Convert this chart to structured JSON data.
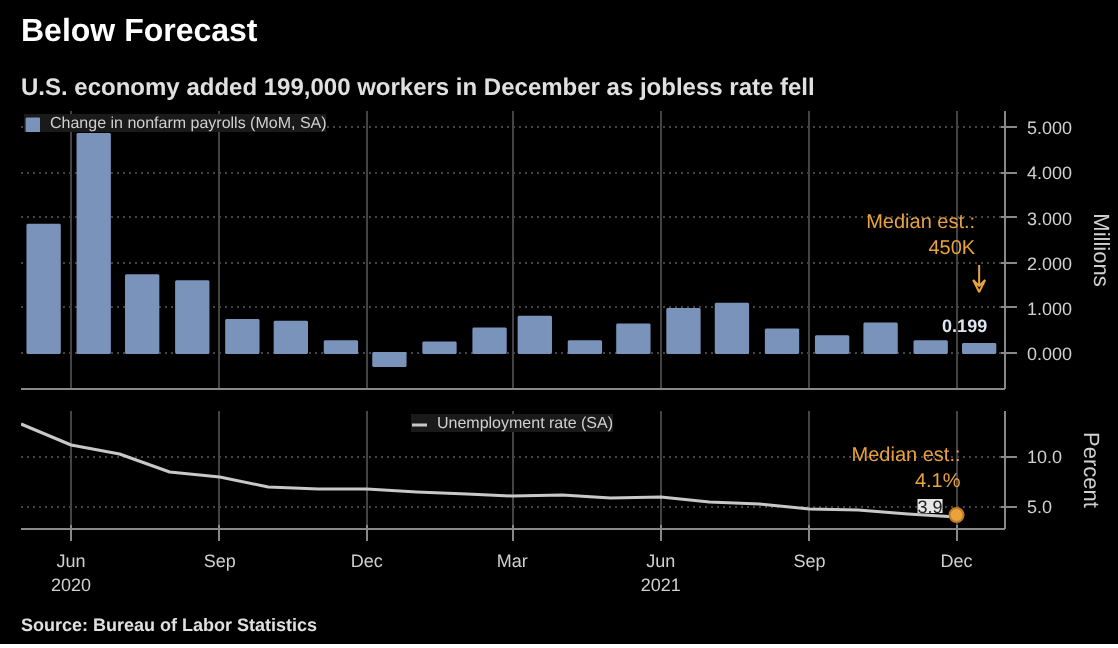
{
  "chart_data": [
    {
      "type": "bar",
      "title": "Below Forecast",
      "subtitle": "U.S. economy added 199,000 workers in December as jobless rate fell",
      "ylabel": "Millions",
      "x": [
        "2020-05-15",
        "2020-06-15",
        "2020-07-15",
        "2020-08-15",
        "2020-09-15",
        "2020-10-15",
        "2020-11-15",
        "2020-12-15",
        "2021-01-15",
        "2021-02-15",
        "2021-03-15",
        "2021-04-15",
        "2021-05-15",
        "2021-06-15",
        "2021-07-15",
        "2021-08-15",
        "2021-09-15",
        "2021-10-15",
        "2021-11-15",
        "2021-12-15"
      ],
      "series": [
        {
          "name": "Change in nonfarm payrolls (MoM, SA)",
          "color": "#7a93bb",
          "values": [
            2.84,
            4.85,
            1.72,
            1.59,
            0.73,
            0.69,
            0.26,
            -0.29,
            0.23,
            0.54,
            0.8,
            0.26,
            0.63,
            0.97,
            1.09,
            0.52,
            0.37,
            0.65,
            0.26,
            0.199
          ],
          "value_labels": [
            null,
            null,
            null,
            null,
            null,
            null,
            null,
            null,
            null,
            null,
            null,
            null,
            null,
            null,
            null,
            null,
            null,
            null,
            null,
            "0.199"
          ]
        }
      ],
      "xlim": [
        "2020-05-01",
        "2021-12-31"
      ],
      "xticks": [
        "2020-06",
        "2020-09",
        "2020-12",
        "2021-03",
        "2021-06",
        "2021-09",
        "2021-12"
      ],
      "ylim": [
        -0.8,
        5.36
      ],
      "yticks": [
        {
          "value": 0,
          "label": "0.000"
        },
        {
          "value": 1,
          "label": "1.000"
        },
        {
          "value": 2,
          "label": "2.000"
        },
        {
          "value": 3,
          "label": "3.000"
        },
        {
          "value": 4,
          "label": "4.000"
        },
        {
          "value": 5,
          "label": "5.000"
        }
      ],
      "annotations": [
        "Median est.:\n450K"
      ],
      "grid": true,
      "legend": "top left",
      "tick_labels": "y"
    },
    {
      "type": "line",
      "ylabel": "Percent",
      "x": [
        "2020-05",
        "2020-06",
        "2020-07",
        "2020-08",
        "2020-09",
        "2020-10",
        "2020-11",
        "2020-12",
        "2021-01",
        "2021-02",
        "2021-03",
        "2021-04",
        "2021-05",
        "2021-06",
        "2021-07",
        "2021-08",
        "2021-09",
        "2021-10",
        "2021-11",
        "2021-12"
      ],
      "series": [
        {
          "name": "Unemployment rate (SA)",
          "color": "#c8c8c8",
          "values": [
            13.2,
            11.1,
            10.2,
            8.4,
            7.9,
            6.9,
            6.7,
            6.7,
            6.4,
            6.2,
            6.0,
            6.1,
            5.8,
            5.9,
            5.4,
            5.2,
            4.7,
            4.6,
            4.2,
            3.9
          ],
          "value_labels": [
            null,
            null,
            null,
            null,
            null,
            null,
            null,
            null,
            null,
            null,
            null,
            null,
            null,
            null,
            null,
            null,
            null,
            null,
            null,
            "3.9"
          ]
        }
      ],
      "xlim": [
        "2020-05-01",
        "2021-12-31"
      ],
      "xticks": [
        {
          "value": "2020-06",
          "label": "Jun\n2020"
        },
        {
          "value": "2020-09",
          "label": "Sep"
        },
        {
          "value": "2020-12",
          "label": "Dec"
        },
        {
          "value": "2021-03",
          "label": "Mar"
        },
        {
          "value": "2021-06",
          "label": "Jun\n2021"
        },
        {
          "value": "2021-09",
          "label": "Sep"
        },
        {
          "value": "2021-12",
          "label": "Dec"
        }
      ],
      "ylim": [
        2.7,
        14.5
      ],
      "yticks": [
        {
          "value": 5,
          "label": "5.0"
        },
        {
          "value": 10,
          "label": "10.0"
        }
      ],
      "annotations": [
        {
          "text": "Median est.:\n4.1%",
          "x": "2021-12",
          "y": 4.1
        },
        "Source: Bureau of Labor Statistics"
      ],
      "grid": true,
      "legend": "top"
    }
  ]
}
